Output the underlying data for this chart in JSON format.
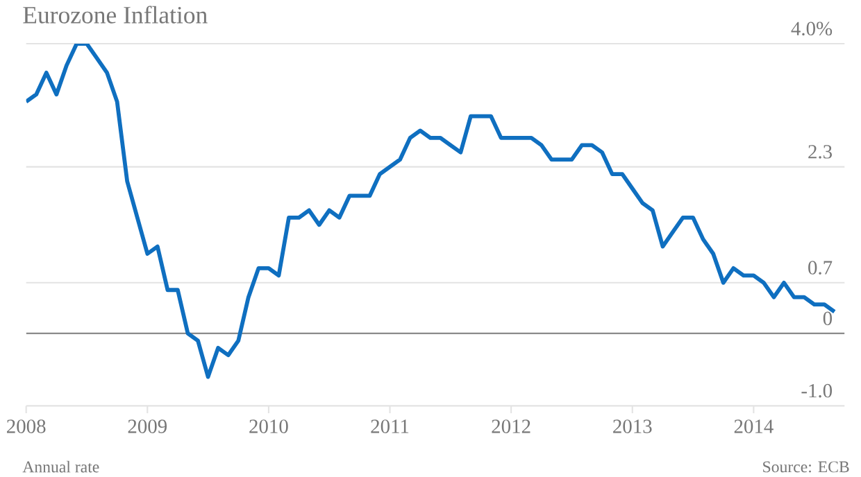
{
  "chart_data": {
    "type": "line",
    "title": "Eurozone Inflation",
    "x": [
      "2008-01",
      "2008-02",
      "2008-03",
      "2008-04",
      "2008-05",
      "2008-06",
      "2008-07",
      "2008-08",
      "2008-09",
      "2008-10",
      "2008-11",
      "2008-12",
      "2009-01",
      "2009-02",
      "2009-03",
      "2009-04",
      "2009-05",
      "2009-06",
      "2009-07",
      "2009-08",
      "2009-09",
      "2009-10",
      "2009-11",
      "2009-12",
      "2010-01",
      "2010-02",
      "2010-03",
      "2010-04",
      "2010-05",
      "2010-06",
      "2010-07",
      "2010-08",
      "2010-09",
      "2010-10",
      "2010-11",
      "2010-12",
      "2011-01",
      "2011-02",
      "2011-03",
      "2011-04",
      "2011-05",
      "2011-06",
      "2011-07",
      "2011-08",
      "2011-09",
      "2011-10",
      "2011-11",
      "2011-12",
      "2012-01",
      "2012-02",
      "2012-03",
      "2012-04",
      "2012-05",
      "2012-06",
      "2012-07",
      "2012-08",
      "2012-09",
      "2012-10",
      "2012-11",
      "2012-12",
      "2013-01",
      "2013-02",
      "2013-03",
      "2013-04",
      "2013-05",
      "2013-06",
      "2013-07",
      "2013-08",
      "2013-09",
      "2013-10",
      "2013-11",
      "2013-12",
      "2014-01",
      "2014-02",
      "2014-03",
      "2014-04",
      "2014-05",
      "2014-06",
      "2014-07",
      "2014-08",
      "2014-09"
    ],
    "series": [
      {
        "color": "#0f6fc0",
        "values": [
          3.2,
          3.3,
          3.6,
          3.3,
          3.7,
          4.0,
          4.0,
          3.8,
          3.6,
          3.2,
          2.1,
          1.6,
          1.1,
          1.2,
          0.6,
          0.6,
          0.0,
          -0.1,
          -0.6,
          -0.2,
          -0.3,
          -0.1,
          0.5,
          0.9,
          0.9,
          0.8,
          1.6,
          1.6,
          1.7,
          1.5,
          1.7,
          1.6,
          1.9,
          1.9,
          1.9,
          2.2,
          2.3,
          2.4,
          2.7,
          2.8,
          2.7,
          2.7,
          2.6,
          2.5,
          3.0,
          3.0,
          3.0,
          2.7,
          2.7,
          2.7,
          2.7,
          2.6,
          2.4,
          2.4,
          2.4,
          2.6,
          2.6,
          2.5,
          2.2,
          2.2,
          2.0,
          1.8,
          1.7,
          1.2,
          1.4,
          1.6,
          1.6,
          1.3,
          1.1,
          0.7,
          0.9,
          0.8,
          0.8,
          0.7,
          0.5,
          0.7,
          0.5,
          0.5,
          0.4,
          0.4,
          0.3
        ]
      }
    ],
    "xlim": [
      "2008-01",
      "2014-10"
    ],
    "xticks": [
      "2008",
      "2009",
      "2010",
      "2011",
      "2012",
      "2013",
      "2014"
    ],
    "ylim": [
      -1,
      4
    ],
    "yticks": [
      {
        "value": -1,
        "label": "-1.0"
      },
      0,
      0.7,
      2.3,
      {
        "value": 4,
        "label": "4.0%"
      }
    ],
    "ref_lines": [
      {
        "axis": "y",
        "value": 0,
        "color": "#8c8c8c"
      }
    ],
    "grid": "y",
    "marker": "none",
    "line_style": "solid",
    "annotations": [
      "Annual rate",
      "Source: ECB"
    ]
  }
}
